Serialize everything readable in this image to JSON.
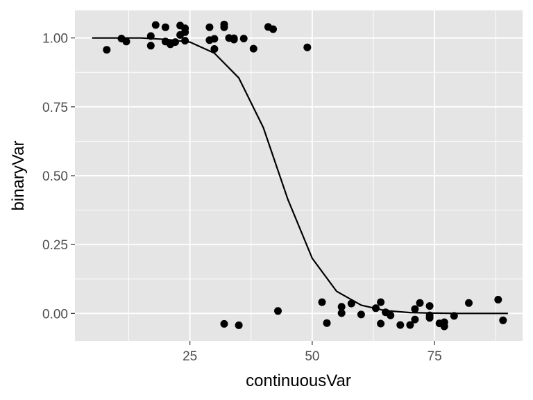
{
  "chart_data": {
    "type": "scatter",
    "title": "",
    "xlabel": "continuousVar",
    "ylabel": "binaryVar",
    "xlim": [
      1.5,
      93
    ],
    "ylim": [
      -0.1,
      1.1
    ],
    "x_ticks": [
      25,
      50,
      75
    ],
    "x_tick_labels": [
      "25",
      "50",
      "75"
    ],
    "y_ticks": [
      0,
      0.25,
      0.5,
      0.75,
      1
    ],
    "y_tick_labels": [
      "0.00",
      "0.25",
      "0.50",
      "0.75",
      "1.00"
    ],
    "grid": true,
    "legend": "none",
    "colors": {
      "panel": "#e5e5e5",
      "grid": "#ffffff",
      "points": "#000000",
      "curve": "#000000",
      "ticks": "#4d4d4d"
    },
    "series": [
      {
        "type": "scatter",
        "points": [
          {
            "x": 8,
            "y": 0.957
          },
          {
            "x": 11,
            "y": 0.998
          },
          {
            "x": 12,
            "y": 0.987
          },
          {
            "x": 17,
            "y": 1.007
          },
          {
            "x": 17,
            "y": 0.972
          },
          {
            "x": 18,
            "y": 1.047
          },
          {
            "x": 20,
            "y": 1.039
          },
          {
            "x": 20,
            "y": 0.987
          },
          {
            "x": 21,
            "y": 0.977
          },
          {
            "x": 22,
            "y": 0.985
          },
          {
            "x": 23,
            "y": 1.045
          },
          {
            "x": 23,
            "y": 1.011
          },
          {
            "x": 24,
            "y": 1.035
          },
          {
            "x": 24,
            "y": 1.021
          },
          {
            "x": 24,
            "y": 0.99
          },
          {
            "x": 29,
            "y": 1.039
          },
          {
            "x": 29,
            "y": 0.992
          },
          {
            "x": 30,
            "y": 0.997
          },
          {
            "x": 30,
            "y": 0.96
          },
          {
            "x": 32,
            "y": 1.049
          },
          {
            "x": 32,
            "y": 1.039
          },
          {
            "x": 33,
            "y": 1.0
          },
          {
            "x": 34,
            "y": 0.994
          },
          {
            "x": 34,
            "y": 0.999
          },
          {
            "x": 36,
            "y": 0.998
          },
          {
            "x": 38,
            "y": 0.961
          },
          {
            "x": 41,
            "y": 1.04
          },
          {
            "x": 42,
            "y": 1.032
          },
          {
            "x": 49,
            "y": 0.966
          },
          {
            "x": 32,
            "y": -0.038
          },
          {
            "x": 35,
            "y": -0.043
          },
          {
            "x": 43,
            "y": 0.009
          },
          {
            "x": 52,
            "y": 0.041
          },
          {
            "x": 53,
            "y": -0.035
          },
          {
            "x": 56,
            "y": 0.024
          },
          {
            "x": 56,
            "y": 0.001
          },
          {
            "x": 58,
            "y": 0.036
          },
          {
            "x": 60,
            "y": -0.004
          },
          {
            "x": 63,
            "y": 0.019
          },
          {
            "x": 64,
            "y": 0.041
          },
          {
            "x": 64,
            "y": -0.037
          },
          {
            "x": 65,
            "y": 0.004
          },
          {
            "x": 66,
            "y": -0.007
          },
          {
            "x": 68,
            "y": -0.042
          },
          {
            "x": 70,
            "y": -0.042
          },
          {
            "x": 71,
            "y": 0.016
          },
          {
            "x": 71,
            "y": -0.022
          },
          {
            "x": 72,
            "y": 0.038
          },
          {
            "x": 74,
            "y": 0.027
          },
          {
            "x": 74,
            "y": -0.007
          },
          {
            "x": 74,
            "y": -0.016
          },
          {
            "x": 76,
            "y": -0.036
          },
          {
            "x": 77,
            "y": -0.032
          },
          {
            "x": 77,
            "y": -0.047
          },
          {
            "x": 79,
            "y": -0.009
          },
          {
            "x": 82,
            "y": 0.038
          },
          {
            "x": 88,
            "y": 0.05
          },
          {
            "x": 89,
            "y": -0.025
          }
        ]
      },
      {
        "type": "line",
        "points": [
          {
            "x": 5,
            "y": 1.0
          },
          {
            "x": 10,
            "y": 1.0
          },
          {
            "x": 15,
            "y": 1.0
          },
          {
            "x": 20,
            "y": 0.995
          },
          {
            "x": 25,
            "y": 0.985
          },
          {
            "x": 30,
            "y": 0.945
          },
          {
            "x": 35,
            "y": 0.855
          },
          {
            "x": 40,
            "y": 0.675
          },
          {
            "x": 45,
            "y": 0.415
          },
          {
            "x": 50,
            "y": 0.2
          },
          {
            "x": 55,
            "y": 0.08
          },
          {
            "x": 60,
            "y": 0.03
          },
          {
            "x": 65,
            "y": 0.01
          },
          {
            "x": 70,
            "y": 0.003
          },
          {
            "x": 75,
            "y": 0.001
          },
          {
            "x": 80,
            "y": 0.0
          },
          {
            "x": 85,
            "y": 0.0
          },
          {
            "x": 90,
            "y": 0.0
          }
        ]
      }
    ]
  }
}
